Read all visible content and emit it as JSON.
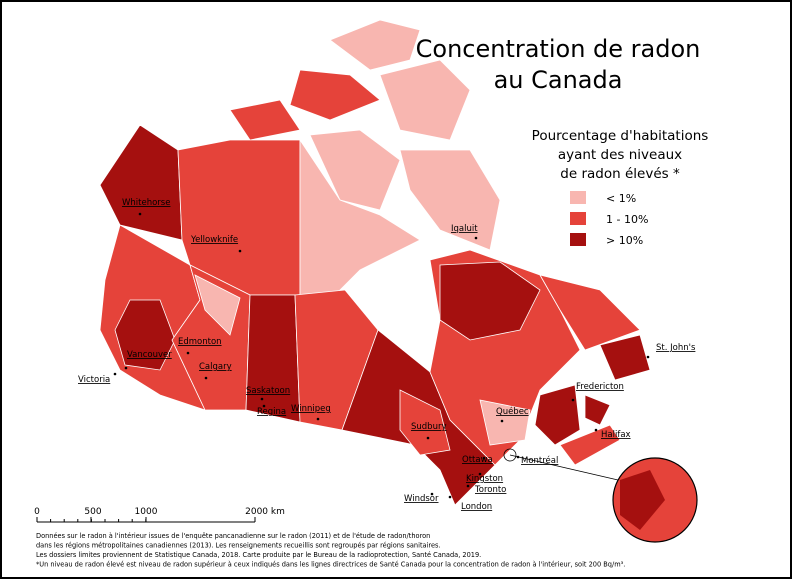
{
  "title": [
    "Concentration de radon",
    "au Canada"
  ],
  "legend": {
    "title": [
      "Pourcentage d'habitations",
      "ayant des niveaux",
      "de radon élevés *"
    ],
    "items": [
      {
        "label": "< 1%",
        "color": "#f8b6b0"
      },
      {
        "label": "1 - 10%",
        "color": "#e5433a"
      },
      {
        "label": "> 10%",
        "color": "#a5100f"
      }
    ]
  },
  "cities": [
    "Whitehorse",
    "Yellowknife",
    "Iqaluit",
    "Edmonton",
    "Calgary",
    "Vancouver",
    "Victoria",
    "Saskatoon",
    "Regina",
    "Winnipeg",
    "Sudbury",
    "Ottawa",
    "Montréal",
    "Québec",
    "Fredericton",
    "Halifax",
    "St. John's",
    "Kingston",
    "Toronto",
    "Windsor",
    "London"
  ],
  "scale": [
    "0",
    "500",
    "1000",
    "2000 km"
  ],
  "notes": [
    "Données sur le radon à l'intérieur issues de l'enquête pancanadienne sur le radon (2011) et de l'étude de radon/thoron",
    "dans les régions métropolitaines canadiennes (2013). Les renseignements recueillis sont regroupés par régions sanitaires.",
    "Les dossiers limites proviennent de Statistique Canada, 2018. Carte produite par le Bureau de la radioprotection, Santé Canada, 2019.",
    "*Un niveau de radon élevé est niveau de radon supérieur à ceux indiqués dans les lignes directrices de Santé Canada pour la concentration de radon à l'intérieur, soit 200 Bq/m³."
  ]
}
